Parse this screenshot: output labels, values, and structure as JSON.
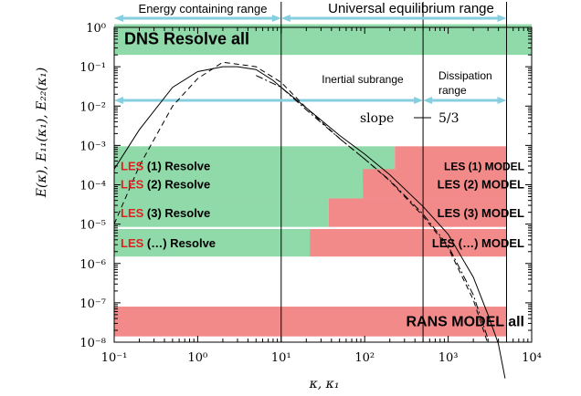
{
  "chart_data": {
    "type": "line",
    "xlabel": "κ, κ₁",
    "ylabel": "E(κ), E₁₁(κ₁), E₂₂(κ₁)",
    "xscale": "log",
    "yscale": "log",
    "xlim": [
      0.1,
      10000
    ],
    "ylim": [
      1e-08,
      1
    ],
    "x_ticks": [
      "10⁻¹",
      "10⁰",
      "10¹",
      "10²",
      "10³",
      "10⁴"
    ],
    "y_ticks": [
      "10⁰",
      "10⁻¹",
      "10⁻²",
      "10⁻³",
      "10⁻⁴",
      "10⁻⁵",
      "10⁻⁶",
      "10⁻⁷",
      "10⁻⁸"
    ],
    "ranges": [
      {
        "label": "Energy containing range",
        "from": 0.1,
        "to": 10,
        "level": "top"
      },
      {
        "label": "Universal equilibrium range",
        "from": 10,
        "to": 5000,
        "level": "top"
      },
      {
        "label": "Inertial subrange",
        "from": 0.1,
        "to": 500,
        "level": "mid"
      },
      {
        "label": "Dissipation",
        "label2": "range",
        "from": 500,
        "to": 5000,
        "level": "mid"
      }
    ],
    "slope_annotation": {
      "prefix": "slope",
      "value": "5/3",
      "kappa_from": 100,
      "kappa_to": 600,
      "E_from": 0.02,
      "E_to": 0.000926
    },
    "bands": [
      {
        "resolve_from": 0.1,
        "resolve_to": 10000,
        "model_to": null,
        "E_center": 0.5,
        "E_span": [
          0.2,
          1.2
        ],
        "prefix": "",
        "resolve_label": "DNS Resolve all",
        "model_label": ""
      },
      {
        "resolve_from": 0.1,
        "resolve_to": 230,
        "model_to": 5000,
        "E_center": 0.0004,
        "E_span": [
          0.0001,
          0.00095
        ],
        "prefix": "LES",
        "resolve_label": " (1) Resolve",
        "model_label": "LES (1) MODEL"
      },
      {
        "resolve_from": 0.1,
        "resolve_to": 95,
        "model_to": 5000,
        "E_center": 0.00011,
        "E_span": [
          4.5e-05,
          0.00025
        ],
        "prefix": "LES",
        "resolve_label": " (2) Resolve",
        "model_label": "LES (2) MODEL"
      },
      {
        "resolve_from": 0.1,
        "resolve_to": 37,
        "model_to": 5000,
        "E_center": 2e-05,
        "E_span": [
          8.5e-06,
          4.5e-05
        ],
        "prefix": "LES",
        "resolve_label": " (3) Resolve",
        "model_label": "LES (3) MODEL"
      },
      {
        "resolve_from": 0.1,
        "resolve_to": 22,
        "model_to": 5000,
        "E_center": 3.5e-06,
        "E_span": [
          1.5e-06,
          7.5e-06
        ],
        "prefix": "LES",
        "resolve_label": " (…) Resolve",
        "model_label": "LES (…) MODEL"
      },
      {
        "resolve_from": null,
        "resolve_to": null,
        "model_to": 5000,
        "model_from": 0.1,
        "E_center": 3.5e-08,
        "E_span": [
          1.4e-08,
          8e-08
        ],
        "prefix": "",
        "resolve_label": "",
        "model_label": "RANS MODEL all"
      }
    ],
    "series": [
      {
        "style": "solid",
        "x": [
          0.1,
          0.2,
          0.5,
          1,
          2,
          3,
          5,
          8,
          10,
          20,
          50,
          100,
          200,
          500,
          1000,
          2000,
          3000,
          4000,
          4800
        ],
        "y": [
          0.00025,
          0.0025,
          0.03,
          0.075,
          0.1,
          0.1,
          0.085,
          0.045,
          0.03,
          0.009,
          0.0018,
          0.0006,
          0.00018,
          2.8e-05,
          5.5e-06,
          4.5e-07,
          5e-08,
          9e-09,
          1.2e-09
        ]
      },
      {
        "style": "dashed",
        "x": [
          0.1,
          0.2,
          0.5,
          1,
          2,
          5,
          10,
          20,
          50,
          100,
          200,
          500,
          1000,
          2000,
          3000
        ],
        "y": [
          1e-05,
          0.0003,
          0.01,
          0.05,
          0.13,
          0.1,
          0.04,
          0.009,
          0.0015,
          0.00045,
          0.000125,
          1.6e-05,
          2.5e-06,
          1.2e-07,
          9e-09
        ]
      },
      {
        "style": "dashdot",
        "x": [
          5,
          10,
          20,
          50,
          100,
          200,
          500,
          1000,
          2000,
          3000
        ],
        "y": [
          0.06,
          0.03,
          0.008,
          0.0015,
          0.00045,
          0.00013,
          1.8e-05,
          2.8e-06,
          1.6e-07,
          1.2e-08
        ]
      }
    ]
  },
  "colors": {
    "resolve": "#90d9a9",
    "model": "#f28a8a",
    "arrow": "#87cfe0",
    "les_red": "#e02020",
    "curve": "#000000"
  }
}
